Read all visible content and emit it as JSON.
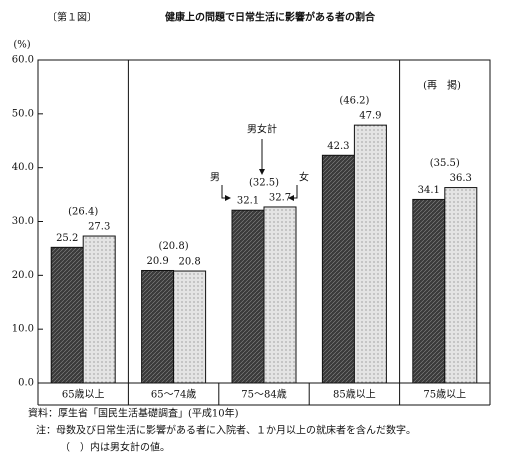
{
  "chart_data": {
    "type": "bar",
    "figure_label": "〔第１図〕",
    "title": "健康上の問題で日常生活に影響がある者の割合",
    "y_label": "(%)",
    "categories": [
      "65歳以上",
      "65～74歳",
      "75～84歳",
      "85歳以上",
      "75歳以上"
    ],
    "series": [
      {
        "name": "男",
        "color": "#3a3a3a",
        "values": [
          25.2,
          20.9,
          32.1,
          42.3,
          34.1
        ]
      },
      {
        "name": "女",
        "color": "#e4e4e4",
        "values": [
          27.3,
          20.8,
          32.7,
          47.9,
          36.3
        ]
      }
    ],
    "totals": {
      "name": "男女計",
      "values": [
        26.4,
        20.8,
        32.5,
        46.2,
        35.5
      ],
      "value_labels": [
        "(26.4)",
        "(20.8)",
        "(32.5)",
        "(46.2)",
        "(35.5)"
      ]
    },
    "reprint_label": "(再　掲)",
    "ylim": [
      0,
      60
    ],
    "yticks": [
      {
        "value": 0,
        "label": "0.0"
      },
      {
        "value": 10,
        "label": "10.0"
      },
      {
        "value": 20,
        "label": "20.0"
      },
      {
        "value": 30,
        "label": "30.0"
      },
      {
        "value": 40,
        "label": "40.0"
      },
      {
        "value": 50,
        "label": "50.0"
      },
      {
        "value": 60,
        "label": "60.0"
      }
    ],
    "grid": false,
    "notes": [
      "資料：厚生省「国民生活基礎調査」(平成10年)",
      "注：母数及び日常生活に影響がある者に入院者、１か月以上の就床者を含んだ数字。",
      "（　）内は男女計の値。"
    ]
  }
}
